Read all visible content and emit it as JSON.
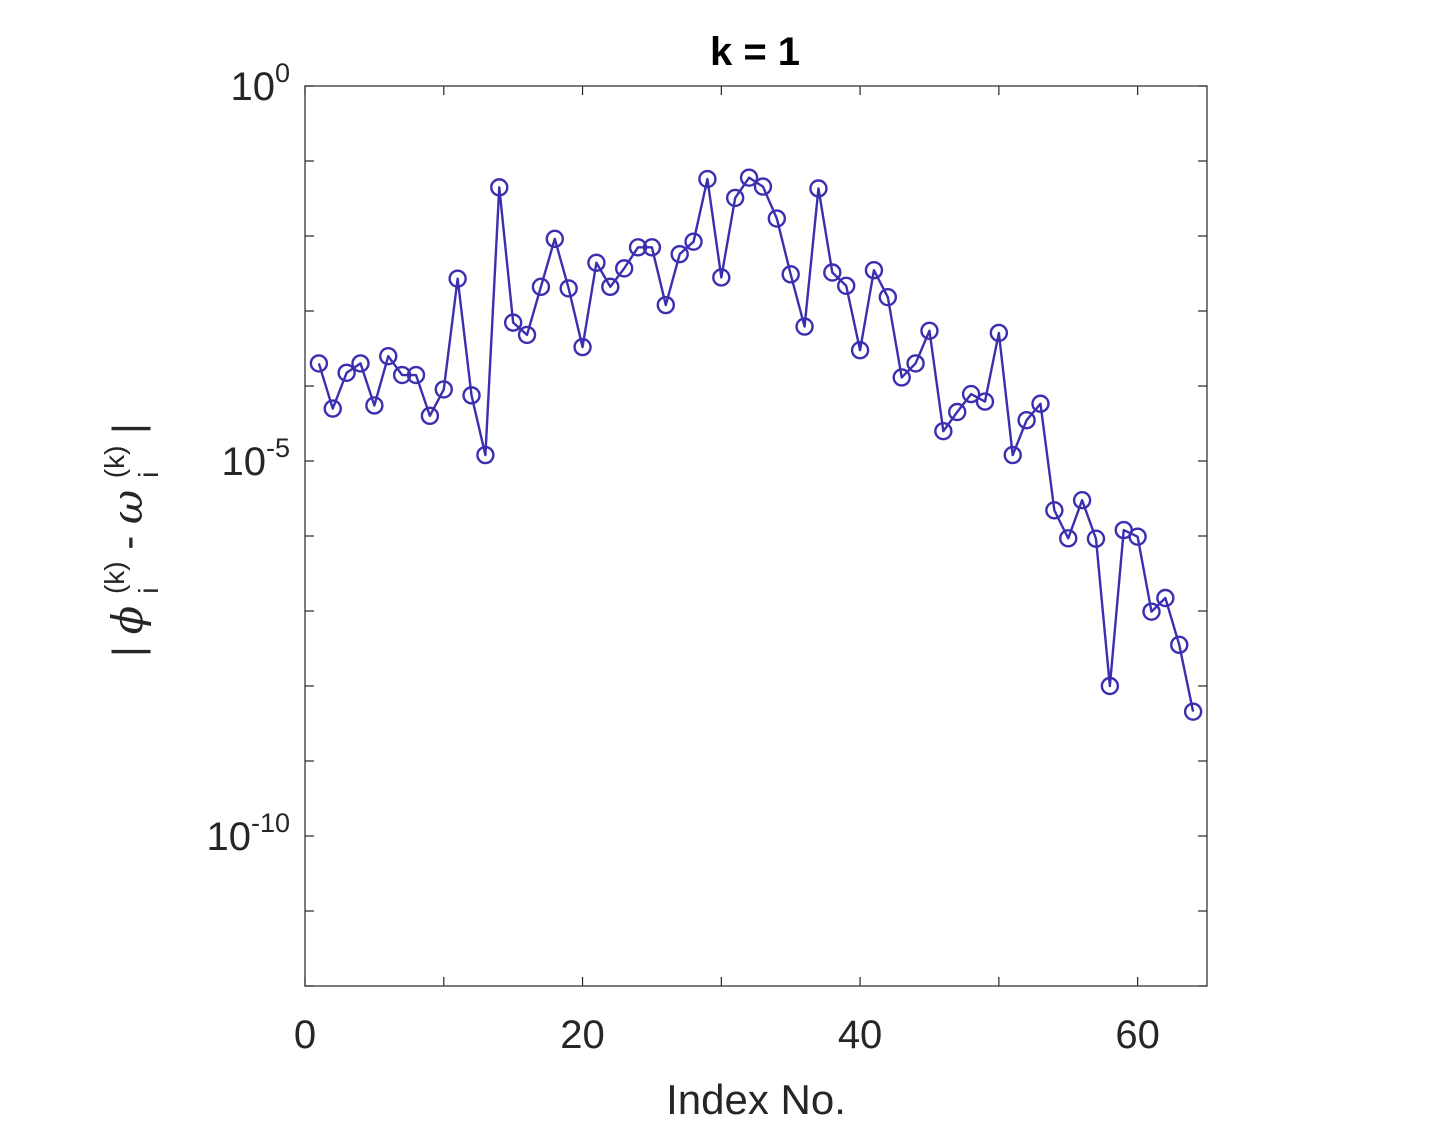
{
  "chart_data": {
    "type": "line",
    "title": "k = 1",
    "xlabel": "Index No.",
    "ylabel": {
      "bar_left": "|",
      "phi": "ϕ",
      "k_sup_1": "(k)",
      "i_sub_1": "i",
      "minus": " - ",
      "omega": "ω",
      "k_sup_2": "(k)",
      "i_sub_2": "i",
      "bar_right": "|"
    },
    "xlim": [
      0,
      65
    ],
    "ylim": [
      1e-12,
      1
    ],
    "y_scale": "log",
    "x_ticks": [
      {
        "value": 0,
        "label": "0"
      },
      {
        "value": 20,
        "label": "20"
      },
      {
        "value": 40,
        "label": "40"
      },
      {
        "value": 60,
        "label": "60"
      }
    ],
    "y_ticks": [
      {
        "value": 1,
        "base": "10",
        "exp": "0"
      },
      {
        "value": 1e-05,
        "base": "10",
        "exp": "-5"
      },
      {
        "value": 1e-10,
        "base": "10",
        "exp": "-10"
      }
    ],
    "grid": false,
    "series": [
      {
        "marker": "circle-open",
        "color": "#3b2fb0",
        "x": [
          1,
          2,
          3,
          4,
          5,
          6,
          7,
          8,
          9,
          10,
          11,
          12,
          13,
          14,
          15,
          16,
          17,
          18,
          19,
          20,
          21,
          22,
          23,
          24,
          25,
          26,
          27,
          28,
          29,
          30,
          31,
          32,
          33,
          34,
          35,
          36,
          37,
          38,
          39,
          40,
          41,
          42,
          43,
          44,
          45,
          46,
          47,
          48,
          49,
          50,
          51,
          52,
          53,
          54,
          55,
          56,
          57,
          58,
          59,
          60,
          61,
          62,
          63,
          64
        ],
        "y": [
          0.0002,
          5e-05,
          0.00015,
          0.0002,
          5.5e-05,
          0.00025,
          0.00014,
          0.00014,
          4e-05,
          9e-05,
          0.0027,
          7.5e-05,
          1.2e-05,
          0.0445,
          0.0007,
          0.00048,
          0.0021,
          0.00917,
          0.002,
          0.00033,
          0.0044,
          0.0021,
          0.0037,
          0.00706,
          0.00706,
          0.0012,
          0.00573,
          0.0084,
          0.0575,
          0.0028,
          0.0322,
          0.06,
          0.0456,
          0.0171,
          0.00308,
          0.00062,
          0.043,
          0.00326,
          0.00217,
          0.0003,
          0.0035,
          0.00153,
          0.00013,
          0.0002,
          0.000545,
          2.5e-05,
          4.5e-05,
          7.8e-05,
          6.2e-05,
          0.00051,
          1.2e-05,
          3.5e-05,
          5.8e-05,
          2.2e-06,
          9.3e-07,
          3e-06,
          9.2e-07,
          1e-08,
          1.2e-06,
          9.8e-07,
          9.8e-08,
          1.49e-07,
          3.54e-08,
          4.55e-09
        ]
      }
    ]
  }
}
